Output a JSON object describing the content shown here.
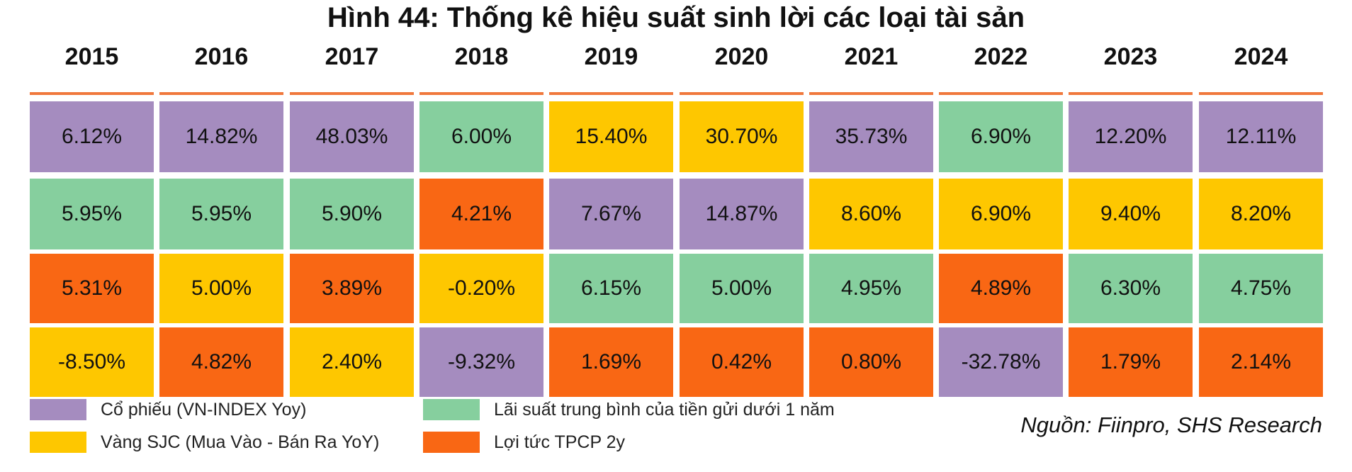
{
  "chart_data": {
    "type": "table",
    "title": "Hình 44: Thống kê hiệu suất sinh lời các loại tài sản",
    "years": [
      "2015",
      "2016",
      "2017",
      "2018",
      "2019",
      "2020",
      "2021",
      "2022",
      "2023",
      "2024"
    ],
    "assets": {
      "stock": {
        "label": "Cổ phiếu (VN-INDEX Yoy)",
        "color": "#a58cbf"
      },
      "deposit": {
        "label": "Lãi suất trung bình của tiền gửi dưới 1 năm",
        "color": "#86cf9e"
      },
      "gold": {
        "label": "Vàng SJC (Mua Vào - Bán Ra YoY)",
        "color": "#fec700"
      },
      "bond": {
        "label": "Lợi tức TPCP 2y",
        "color": "#f96714"
      }
    },
    "legend_order": [
      "stock",
      "gold",
      "deposit",
      "bond"
    ],
    "columns": [
      [
        {
          "a": "stock",
          "v": "6.12%"
        },
        {
          "a": "deposit",
          "v": "5.95%"
        },
        {
          "a": "bond",
          "v": "5.31%"
        },
        {
          "a": "gold",
          "v": "-8.50%"
        }
      ],
      [
        {
          "a": "stock",
          "v": "14.82%"
        },
        {
          "a": "deposit",
          "v": "5.95%"
        },
        {
          "a": "gold",
          "v": "5.00%"
        },
        {
          "a": "bond",
          "v": "4.82%"
        }
      ],
      [
        {
          "a": "stock",
          "v": "48.03%"
        },
        {
          "a": "deposit",
          "v": "5.90%"
        },
        {
          "a": "bond",
          "v": "3.89%"
        },
        {
          "a": "gold",
          "v": "2.40%"
        }
      ],
      [
        {
          "a": "deposit",
          "v": "6.00%"
        },
        {
          "a": "bond",
          "v": "4.21%"
        },
        {
          "a": "gold",
          "v": "-0.20%"
        },
        {
          "a": "stock",
          "v": "-9.32%"
        }
      ],
      [
        {
          "a": "gold",
          "v": "15.40%"
        },
        {
          "a": "stock",
          "v": "7.67%"
        },
        {
          "a": "deposit",
          "v": "6.15%"
        },
        {
          "a": "bond",
          "v": "1.69%"
        }
      ],
      [
        {
          "a": "gold",
          "v": "30.70%"
        },
        {
          "a": "stock",
          "v": "14.87%"
        },
        {
          "a": "deposit",
          "v": "5.00%"
        },
        {
          "a": "bond",
          "v": "0.42%"
        }
      ],
      [
        {
          "a": "stock",
          "v": "35.73%"
        },
        {
          "a": "gold",
          "v": "8.60%"
        },
        {
          "a": "deposit",
          "v": "4.95%"
        },
        {
          "a": "bond",
          "v": "0.80%"
        }
      ],
      [
        {
          "a": "deposit",
          "v": "6.90%"
        },
        {
          "a": "gold",
          "v": "6.90%"
        },
        {
          "a": "bond",
          "v": "4.89%"
        },
        {
          "a": "stock",
          "v": "-32.78%"
        }
      ],
      [
        {
          "a": "stock",
          "v": "12.20%"
        },
        {
          "a": "gold",
          "v": "9.40%"
        },
        {
          "a": "deposit",
          "v": "6.30%"
        },
        {
          "a": "bond",
          "v": "1.79%"
        }
      ],
      [
        {
          "a": "stock",
          "v": "12.11%"
        },
        {
          "a": "gold",
          "v": "8.20%"
        },
        {
          "a": "deposit",
          "v": "4.75%"
        },
        {
          "a": "bond",
          "v": "2.14%"
        }
      ]
    ],
    "source": "Nguồn: Fiinpro, SHS Research"
  }
}
